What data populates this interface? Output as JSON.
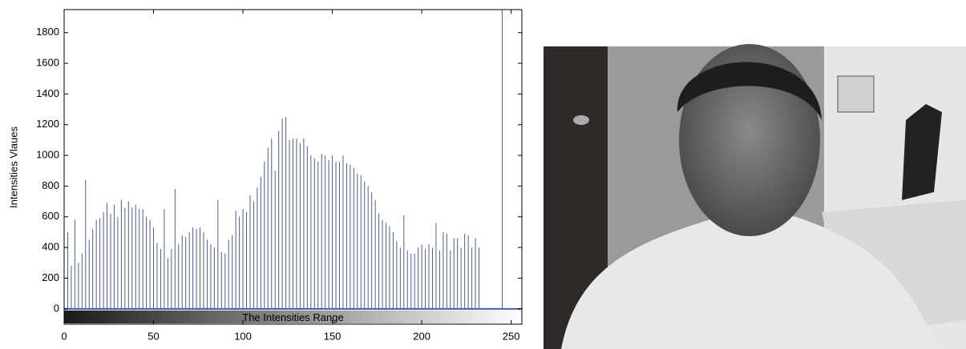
{
  "chart_data": {
    "type": "stem",
    "y_label": "Intensities Vlaues",
    "annotation": "The Intensities Range",
    "color": "#4a5ca6",
    "xlim": [
      0,
      256
    ],
    "ylim": [
      -100,
      1950
    ],
    "xticks": [
      0,
      50,
      100,
      150,
      200,
      250
    ],
    "yticks": [
      0,
      200,
      400,
      600,
      800,
      1000,
      1200,
      1400,
      1600,
      1800
    ],
    "x": [
      0,
      2,
      4,
      6,
      8,
      10,
      12,
      14,
      16,
      18,
      20,
      22,
      24,
      26,
      28,
      30,
      32,
      34,
      36,
      38,
      40,
      42,
      44,
      46,
      48,
      50,
      52,
      54,
      56,
      58,
      60,
      62,
      64,
      66,
      68,
      70,
      72,
      74,
      76,
      78,
      80,
      82,
      84,
      86,
      88,
      90,
      92,
      94,
      96,
      98,
      100,
      102,
      104,
      106,
      108,
      110,
      112,
      114,
      116,
      118,
      120,
      122,
      124,
      126,
      128,
      130,
      132,
      134,
      136,
      138,
      140,
      142,
      144,
      146,
      148,
      150,
      152,
      154,
      156,
      158,
      160,
      162,
      164,
      166,
      168,
      170,
      172,
      174,
      176,
      178,
      180,
      182,
      184,
      186,
      188,
      190,
      192,
      194,
      196,
      198,
      200,
      202,
      204,
      206,
      208,
      210,
      212,
      214,
      216,
      218,
      220,
      222,
      224,
      226,
      228,
      230,
      232,
      245
    ],
    "values": [
      420,
      500,
      280,
      580,
      300,
      360,
      840,
      450,
      520,
      580,
      590,
      630,
      690,
      620,
      680,
      600,
      710,
      660,
      700,
      660,
      680,
      650,
      650,
      600,
      580,
      530,
      430,
      390,
      650,
      330,
      390,
      780,
      420,
      480,
      470,
      500,
      530,
      520,
      530,
      500,
      450,
      420,
      400,
      710,
      370,
      360,
      450,
      480,
      640,
      600,
      650,
      630,
      740,
      700,
      790,
      860,
      960,
      1050,
      1110,
      900,
      1160,
      1240,
      1250,
      1100,
      1110,
      1110,
      1080,
      1110,
      1060,
      1000,
      980,
      960,
      1010,
      1000,
      970,
      1000,
      960,
      960,
      1000,
      950,
      940,
      920,
      880,
      870,
      830,
      800,
      760,
      710,
      620,
      580,
      560,
      540,
      500,
      440,
      400,
      610,
      380,
      360,
      360,
      400,
      420,
      390,
      420,
      400,
      560,
      380,
      500,
      490,
      380,
      460,
      460,
      400,
      490,
      480,
      400,
      460,
      400,
      1950
    ]
  }
}
